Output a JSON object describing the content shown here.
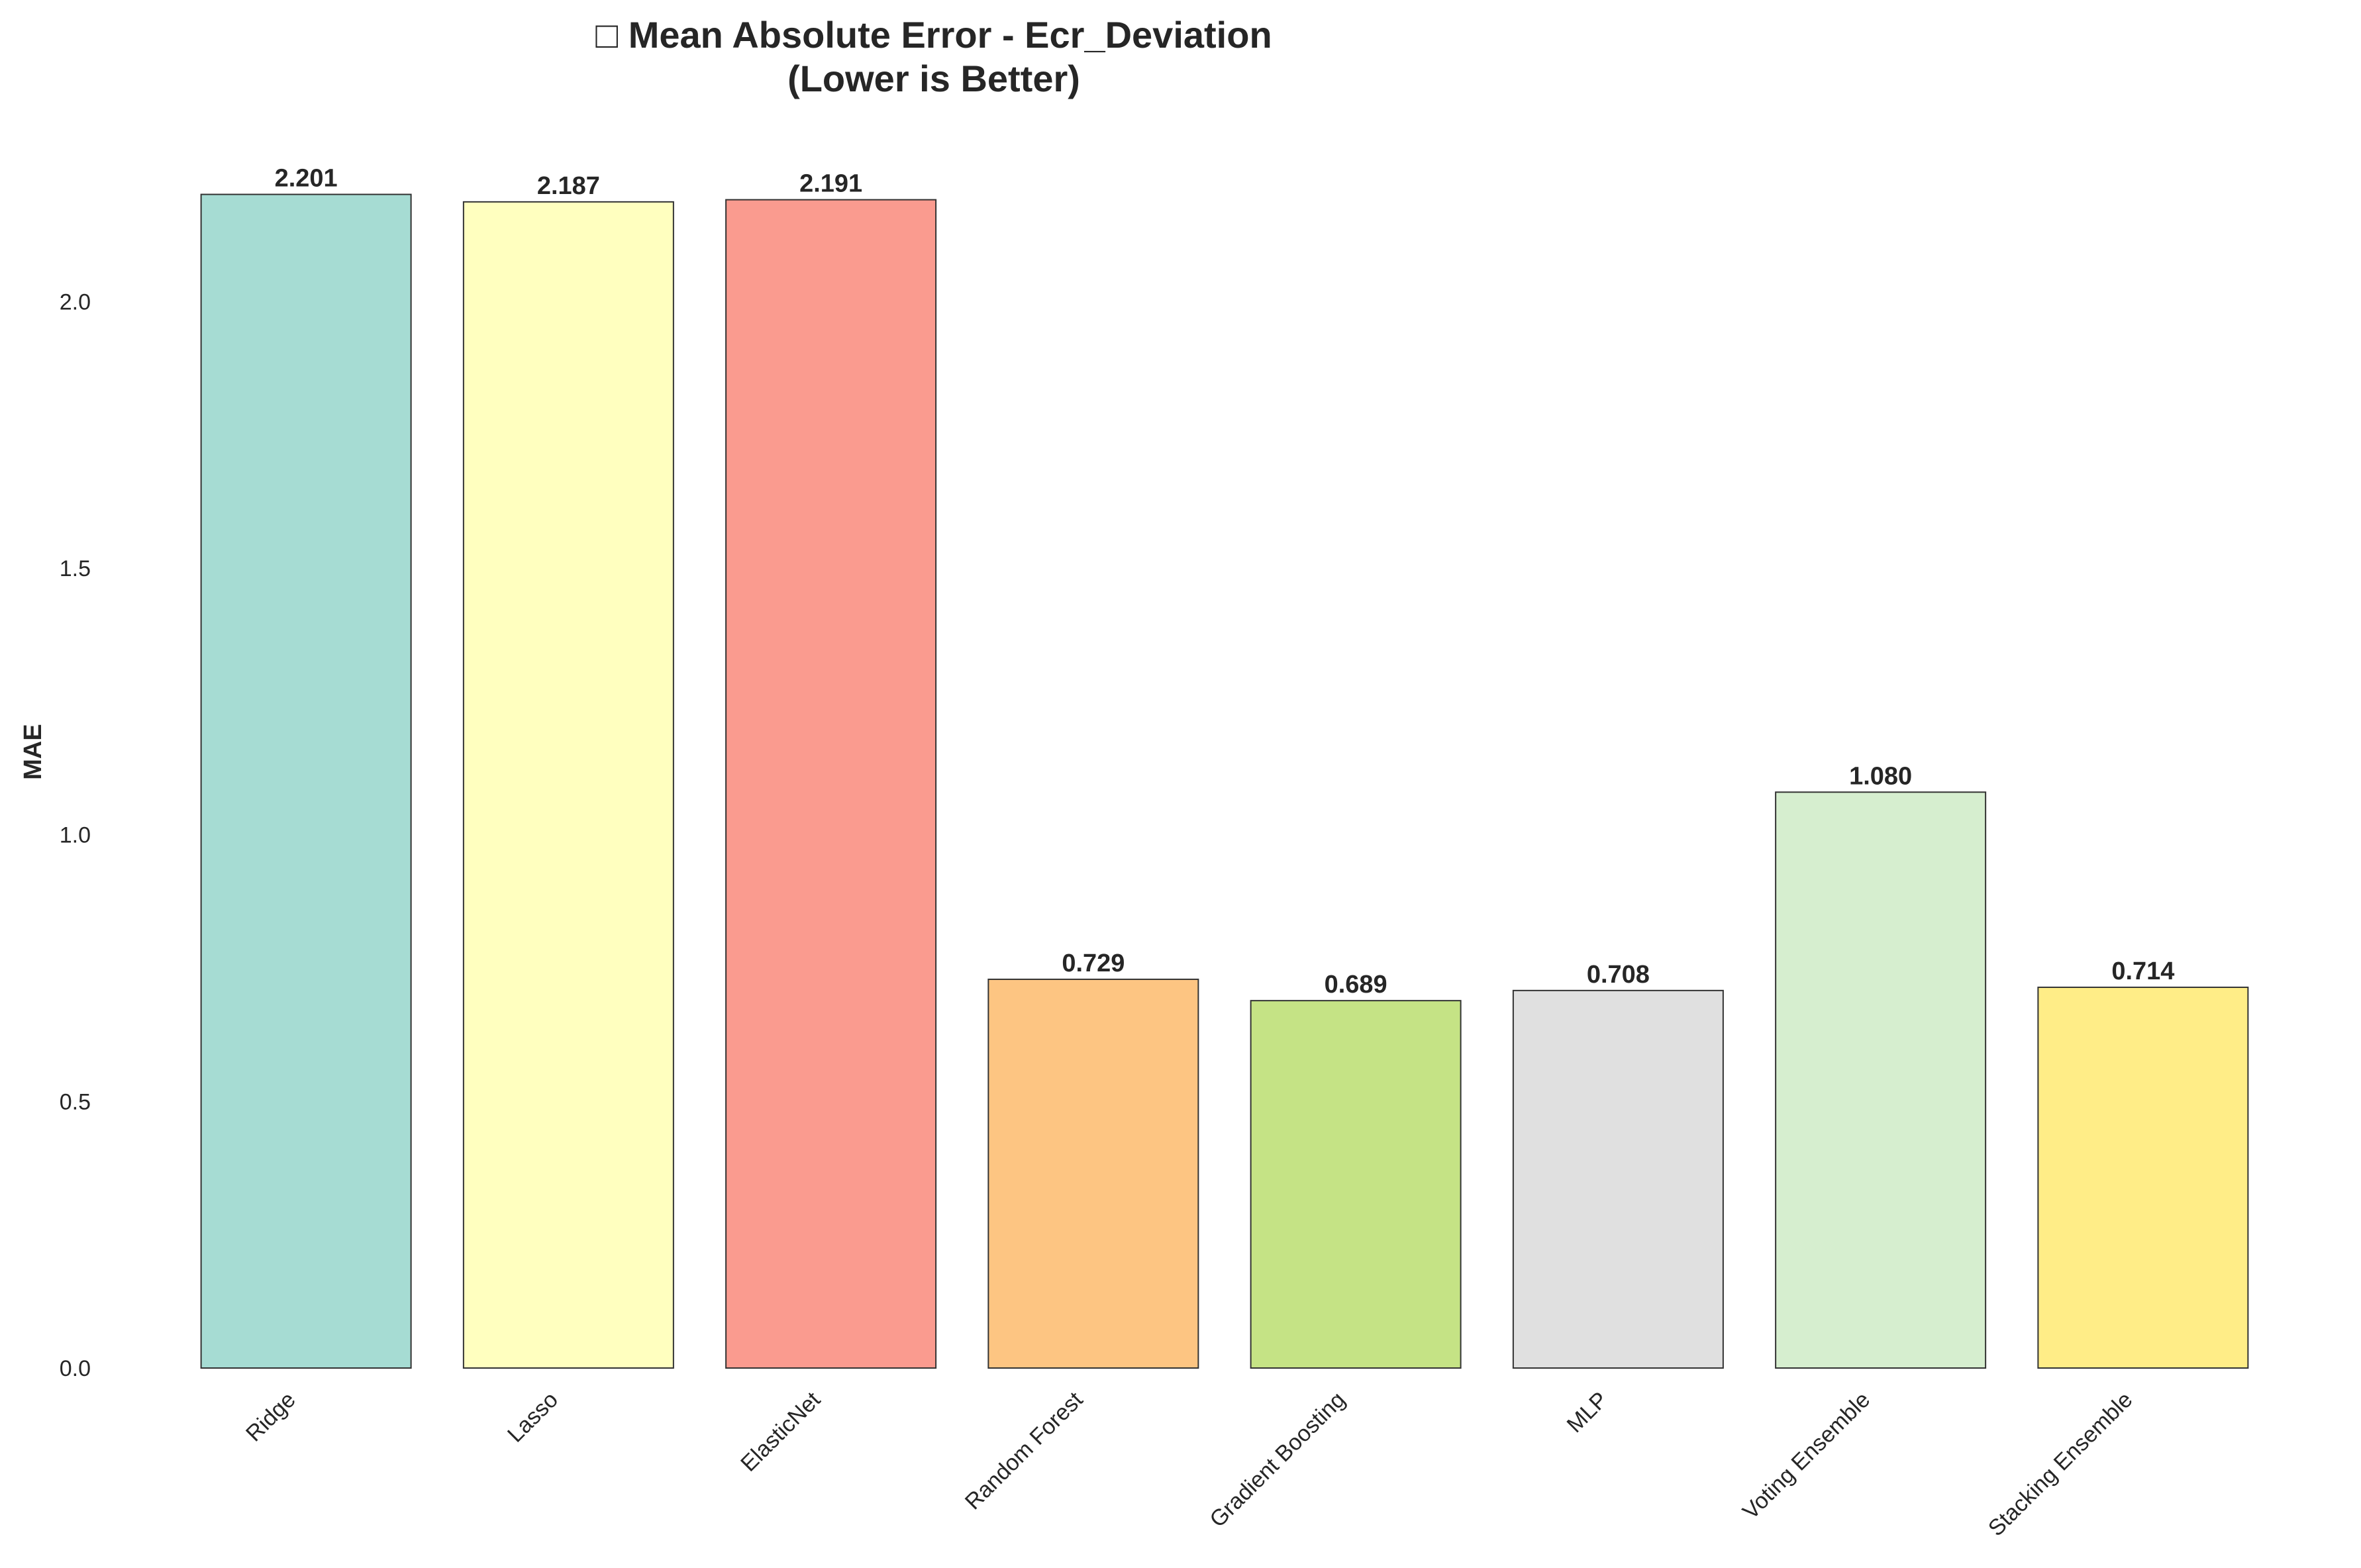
{
  "chart_data": {
    "type": "bar",
    "title": "□ Mean Absolute Error - Ecr_Deviation",
    "subtitle": "(Lower is Better)",
    "xlabel": "",
    "ylabel": "MAE",
    "categories": [
      "Ridge",
      "Lasso",
      "ElasticNet",
      "Random Forest",
      "Gradient Boosting",
      "MLP",
      "Voting Ensemble",
      "Stacking Ensemble"
    ],
    "values": [
      2.201,
      2.187,
      2.191,
      0.729,
      0.689,
      0.708,
      1.08,
      0.714
    ],
    "value_labels": [
      "2.201",
      "2.187",
      "2.191",
      "0.729",
      "0.689",
      "0.708",
      "1.080",
      "0.714"
    ],
    "colors": [
      "#a6dcd3",
      "#ffffbf",
      "#fa9b8f",
      "#fdc582",
      "#c5e385",
      "#e0e0e0",
      "#d6eecf",
      "#ffed87"
    ],
    "yticks": [
      0.0,
      0.5,
      1.0,
      1.5,
      2.0
    ],
    "ytick_labels": [
      "0.0",
      "0.5",
      "1.0",
      "1.5",
      "2.0"
    ],
    "ylim": [
      0,
      2.311
    ],
    "grid": false,
    "legend": "none"
  }
}
